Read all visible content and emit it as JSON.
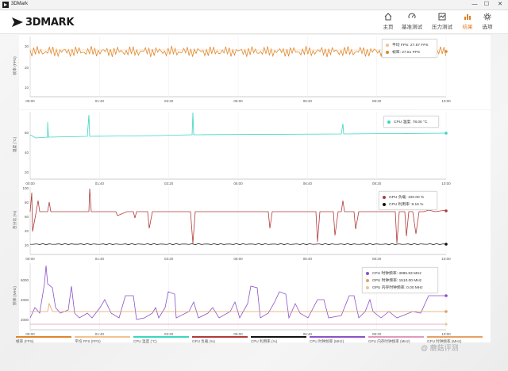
{
  "window": {
    "title": "3DMark"
  },
  "header": {
    "logo": "3DMARK"
  },
  "nav": [
    {
      "label": "主页",
      "icon": "home-icon",
      "active": false
    },
    {
      "label": "基准测试",
      "icon": "gauge-icon",
      "active": false
    },
    {
      "label": "压力测试",
      "icon": "stress-icon",
      "active": false
    },
    {
      "label": "结果",
      "icon": "bar-chart-icon",
      "active": true
    },
    {
      "label": "选项",
      "icon": "gear-icon",
      "active": false
    }
  ],
  "x_ticks": [
    "00:00",
    "01:40",
    "03:20",
    "05:00",
    "06:40",
    "08:20",
    "10:00"
  ],
  "colors": {
    "fps": "#e0862a",
    "fps_avg": "#f2c291",
    "cpu_temp": "#3ad6c0",
    "gpu_load": "#b03a3a",
    "cpu_util": "#111111",
    "cpu_clock": "#8a52c8",
    "gpu_mem_clock": "#e6a063",
    "gpu_mem": "#e09ab8",
    "accent": "#e07f25"
  },
  "panels": {
    "fps": {
      "ylabel": "帧率 (FPS)",
      "yticks": [
        "30",
        "20",
        "10"
      ],
      "legend": [
        {
          "label": "平均 FPS: 27.57 FPS",
          "color": "#f2c291"
        },
        {
          "label": "帧率: 27.51 FPS",
          "color": "#e0862a"
        }
      ]
    },
    "temp": {
      "ylabel": "温度 (°C)",
      "yticks": [
        "60",
        "40",
        "20"
      ],
      "legend": [
        {
          "label": "CPU 温度: 78.00 °C",
          "color": "#3ad6c0"
        }
      ]
    },
    "util": {
      "ylabel": "百分比 (%)",
      "yticks": [
        "100",
        "80",
        "60",
        "40",
        "20"
      ],
      "legend": [
        {
          "label": "GPU 负载: 100.00 %",
          "color": "#b03a3a"
        },
        {
          "label": "CPU 利用率: 8.16 %",
          "color": "#111111"
        }
      ]
    },
    "clock": {
      "ylabel": "频率 (MHz)",
      "yticks": [
        "6000",
        "4000",
        "2000"
      ],
      "legend": [
        {
          "label": "CPU 时钟频率: 3085.93 MHz",
          "color": "#8a52c8"
        },
        {
          "label": "GPU 时钟频率: 1510.00 MHz",
          "color": "#e6a063"
        },
        {
          "label": "GPU 内存时钟频率: 0.00 MHz",
          "color": "#e8c98d"
        }
      ]
    }
  },
  "bottom_legend": [
    {
      "label": "帧率 (FPS)",
      "color": "#e0862a"
    },
    {
      "label": "平均 FPS (FPS)",
      "color": "#f2c291"
    },
    {
      "label": "CPU 温度 (°C)",
      "color": "#3ad6c0"
    },
    {
      "label": "GPU 负载 (%)",
      "color": "#b03a3a"
    },
    {
      "label": "CPU 利用率 (%)",
      "color": "#111111"
    },
    {
      "label": "CPU 时钟频率 (MHz)",
      "color": "#8a52c8"
    },
    {
      "label": "GPU 内存时钟频率 (MHz)",
      "color": "#e09ab8"
    },
    {
      "label": "GPU 时钟频率 (MHz)",
      "color": "#e6a063"
    }
  ],
  "watermark": "@ 蘑菇评测"
}
